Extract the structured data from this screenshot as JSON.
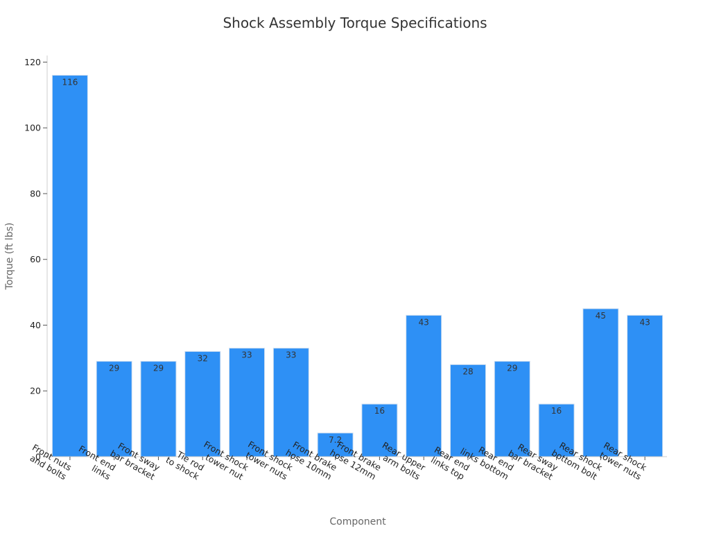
{
  "chart_data": {
    "type": "bar",
    "title": "Shock Assembly Torque Specifications",
    "xlabel": "Component",
    "ylabel": "Torque (ft lbs)",
    "ylim": [
      0,
      122
    ],
    "yticks": [
      0,
      20,
      40,
      60,
      80,
      100,
      120
    ],
    "grid": false,
    "bar_color": "#2e90f5",
    "bar_edge_color": "#d0dff0",
    "categories": [
      [
        "Front nuts",
        "and bolts"
      ],
      [
        "Front end",
        "links"
      ],
      [
        "Front sway",
        "bar bracket"
      ],
      [
        "Tie rod",
        "to shock"
      ],
      [
        "Front shock",
        "tower nut"
      ],
      [
        "Front shock",
        "tower nuts"
      ],
      [
        "Front brake",
        "hose 10mm"
      ],
      [
        "Front brake",
        "hose 12mm"
      ],
      [
        "Rear upper",
        "arm bolts"
      ],
      [
        "Rear end",
        "links top"
      ],
      [
        "Rear end",
        "links bottom"
      ],
      [
        "Rear sway",
        "bar bracket"
      ],
      [
        "Rear shock",
        "bottom bolt"
      ],
      [
        "Rear shock",
        "tower nuts"
      ]
    ],
    "values": [
      116,
      29,
      29,
      32,
      33,
      33,
      7.2,
      16,
      43,
      28,
      29,
      16,
      45,
      43
    ],
    "data_labels": [
      "116",
      "29",
      "29",
      "32",
      "33",
      "33",
      "7.2",
      "16",
      "43",
      "28",
      "29",
      "16",
      "45",
      "43"
    ]
  }
}
